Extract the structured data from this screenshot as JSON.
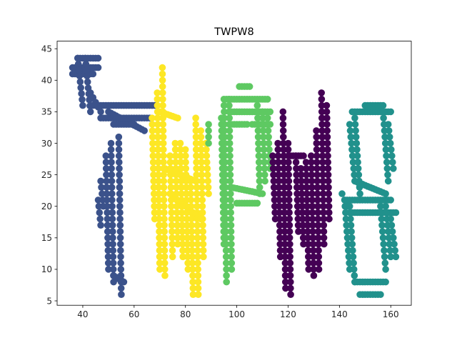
{
  "chart_data": {
    "type": "scatter",
    "title": "TWPW8",
    "xlabel": "",
    "ylabel": "",
    "xlim": [
      30,
      168
    ],
    "ylim": [
      4.3,
      46.2
    ],
    "xticks": [
      40,
      60,
      80,
      100,
      120,
      140,
      160
    ],
    "yticks": [
      5,
      10,
      15,
      20,
      25,
      30,
      35,
      40,
      45
    ],
    "grid": false,
    "series": [
      {
        "color": "#3b528b",
        "strokes": [
          {
            "x": [
              36,
              46
            ],
            "y": [
              42,
              42
            ]
          },
          {
            "x": [
              36,
              44
            ],
            "y": [
              41,
              41
            ]
          },
          {
            "x": [
              38,
              46
            ],
            "y": [
              43.5,
              43.5
            ]
          },
          {
            "x": [
              38,
              40
            ],
            "y": [
              43.5,
              36
            ]
          },
          {
            "x": [
              41,
              43
            ],
            "y": [
              43.5,
              35
            ]
          },
          {
            "x": [
              43,
              47
            ],
            "y": [
              38,
              35
            ]
          },
          {
            "x": [
              44,
              68
            ],
            "y": [
              36,
              36
            ]
          },
          {
            "x": [
              47,
              66
            ],
            "y": [
              34,
              34
            ]
          },
          {
            "x": [
              50,
              64
            ],
            "y": [
              35,
              32
            ]
          },
          {
            "x": [
              52,
              60
            ],
            "y": [
              33,
              33
            ]
          },
          {
            "x": [
              51,
              52
            ],
            "y": [
              30,
              8
            ]
          },
          {
            "x": [
              54,
              55
            ],
            "y": [
              31,
              6
            ]
          },
          {
            "x": [
              49,
              50
            ],
            "y": [
              28,
              10
            ]
          },
          {
            "x": [
              52,
              56
            ],
            "y": [
              9,
              8
            ]
          },
          {
            "x": [
              46,
              47
            ],
            "y": [
              21,
              17
            ]
          },
          {
            "x": [
              47,
              48
            ],
            "y": [
              24,
              20
            ]
          }
        ]
      },
      {
        "color": "#fde725",
        "strokes": [
          {
            "x": [
              71,
              72
            ],
            "y": [
              42,
              9
            ]
          },
          {
            "x": [
              69,
              70
            ],
            "y": [
              38,
              10
            ]
          },
          {
            "x": [
              67,
              68
            ],
            "y": [
              34,
              18
            ]
          },
          {
            "x": [
              70,
              77
            ],
            "y": [
              35,
              34
            ]
          },
          {
            "x": [
              74,
              75
            ],
            "y": [
              28,
              12
            ]
          },
          {
            "x": [
              76,
              77
            ],
            "y": [
              30,
              14
            ]
          },
          {
            "x": [
              78,
              79
            ],
            "y": [
              30,
              12
            ]
          },
          {
            "x": [
              80,
              81
            ],
            "y": [
              29,
              10
            ]
          },
          {
            "x": [
              82,
              83
            ],
            "y": [
              24,
              6
            ]
          },
          {
            "x": [
              84,
              85
            ],
            "y": [
              34,
              6
            ]
          },
          {
            "x": [
              86,
              87
            ],
            "y": [
              32,
              12
            ]
          },
          {
            "x": [
              88,
              89
            ],
            "y": [
              30,
              22
            ]
          },
          {
            "x": [
              74,
              86
            ],
            "y": [
              22,
              18
            ]
          },
          {
            "x": [
              72,
              84
            ],
            "y": [
              26,
              24
            ]
          }
        ]
      },
      {
        "color": "#5ec962",
        "strokes": [
          {
            "x": [
              95,
              96
            ],
            "y": [
              37,
              8
            ]
          },
          {
            "x": [
              97,
              98
            ],
            "y": [
              37,
              10
            ]
          },
          {
            "x": [
              94,
              95
            ],
            "y": [
              34,
              14
            ]
          },
          {
            "x": [
              96,
              112
            ],
            "y": [
              37,
              37
            ]
          },
          {
            "x": [
              97,
              113
            ],
            "y": [
              35,
              35
            ]
          },
          {
            "x": [
              101,
              105
            ],
            "y": [
              39,
              39
            ]
          },
          {
            "x": [
              98,
              104
            ],
            "y": [
              33,
              33
            ]
          },
          {
            "x": [
              106,
              113
            ],
            "y": [
              33,
              33
            ]
          },
          {
            "x": [
              108,
              109
            ],
            "y": [
              36,
              22
            ]
          },
          {
            "x": [
              110,
              111
            ],
            "y": [
              35,
              24
            ]
          },
          {
            "x": [
              112,
              113
            ],
            "y": [
              34,
              26
            ]
          },
          {
            "x": [
              98,
              110
            ],
            "y": [
              23,
              22
            ]
          },
          {
            "x": [
              100,
              108
            ],
            "y": [
              20.5,
              20.5
            ]
          },
          {
            "x": [
              89,
              89
            ],
            "y": [
              33,
              30
            ]
          }
        ]
      },
      {
        "color": "#440154",
        "strokes": [
          {
            "x": [
              118,
              119
            ],
            "y": [
              35,
              7
            ]
          },
          {
            "x": [
              120,
              121
            ],
            "y": [
              30,
              6
            ]
          },
          {
            "x": [
              116,
              117
            ],
            "y": [
              30,
              12
            ]
          },
          {
            "x": [
              114,
              115
            ],
            "y": [
              28,
              18
            ]
          },
          {
            "x": [
              121,
              126
            ],
            "y": [
              28,
              28
            ]
          },
          {
            "x": [
              123,
              124
            ],
            "y": [
              28,
              16
            ]
          },
          {
            "x": [
              125,
              126
            ],
            "y": [
              26,
              14
            ]
          },
          {
            "x": [
              127,
              128
            ],
            "y": [
              27,
              10
            ]
          },
          {
            "x": [
              129,
              130
            ],
            "y": [
              28,
              9
            ]
          },
          {
            "x": [
              131,
              132
            ],
            "y": [
              32,
              10
            ]
          },
          {
            "x": [
              133,
              134
            ],
            "y": [
              38,
              14
            ]
          },
          {
            "x": [
              135,
              136
            ],
            "y": [
              36,
              18
            ]
          }
        ]
      },
      {
        "color": "#21918c",
        "strokes": [
          {
            "x": [
              145,
              160
            ],
            "y": [
              35,
              35
            ]
          },
          {
            "x": [
              150,
              157
            ],
            "y": [
              36,
              36
            ]
          },
          {
            "x": [
              144,
              146
            ],
            "y": [
              33,
              24
            ]
          },
          {
            "x": [
              146,
              148
            ],
            "y": [
              34,
              22
            ]
          },
          {
            "x": [
              157,
              159
            ],
            "y": [
              35,
              24
            ]
          },
          {
            "x": [
              159,
              161
            ],
            "y": [
              33,
              26
            ]
          },
          {
            "x": [
              146,
              158
            ],
            "y": [
              24,
              22
            ]
          },
          {
            "x": [
              141,
              143
            ],
            "y": [
              22,
              20
            ]
          },
          {
            "x": [
              142,
              144
            ],
            "y": [
              21,
              10
            ]
          },
          {
            "x": [
              144,
              146
            ],
            "y": [
              20,
              8
            ]
          },
          {
            "x": [
              143,
              160
            ],
            "y": [
              21,
              21
            ]
          },
          {
            "x": [
              144,
              162
            ],
            "y": [
              19,
              19
            ]
          },
          {
            "x": [
              156,
              158
            ],
            "y": [
              20,
              10
            ]
          },
          {
            "x": [
              158,
              160
            ],
            "y": [
              20,
              12
            ]
          },
          {
            "x": [
              160,
              162
            ],
            "y": [
              18,
              12
            ]
          },
          {
            "x": [
              146,
              158
            ],
            "y": [
              8,
              8
            ]
          },
          {
            "x": [
              148,
              156
            ],
            "y": [
              6,
              6
            ]
          }
        ]
      }
    ]
  }
}
